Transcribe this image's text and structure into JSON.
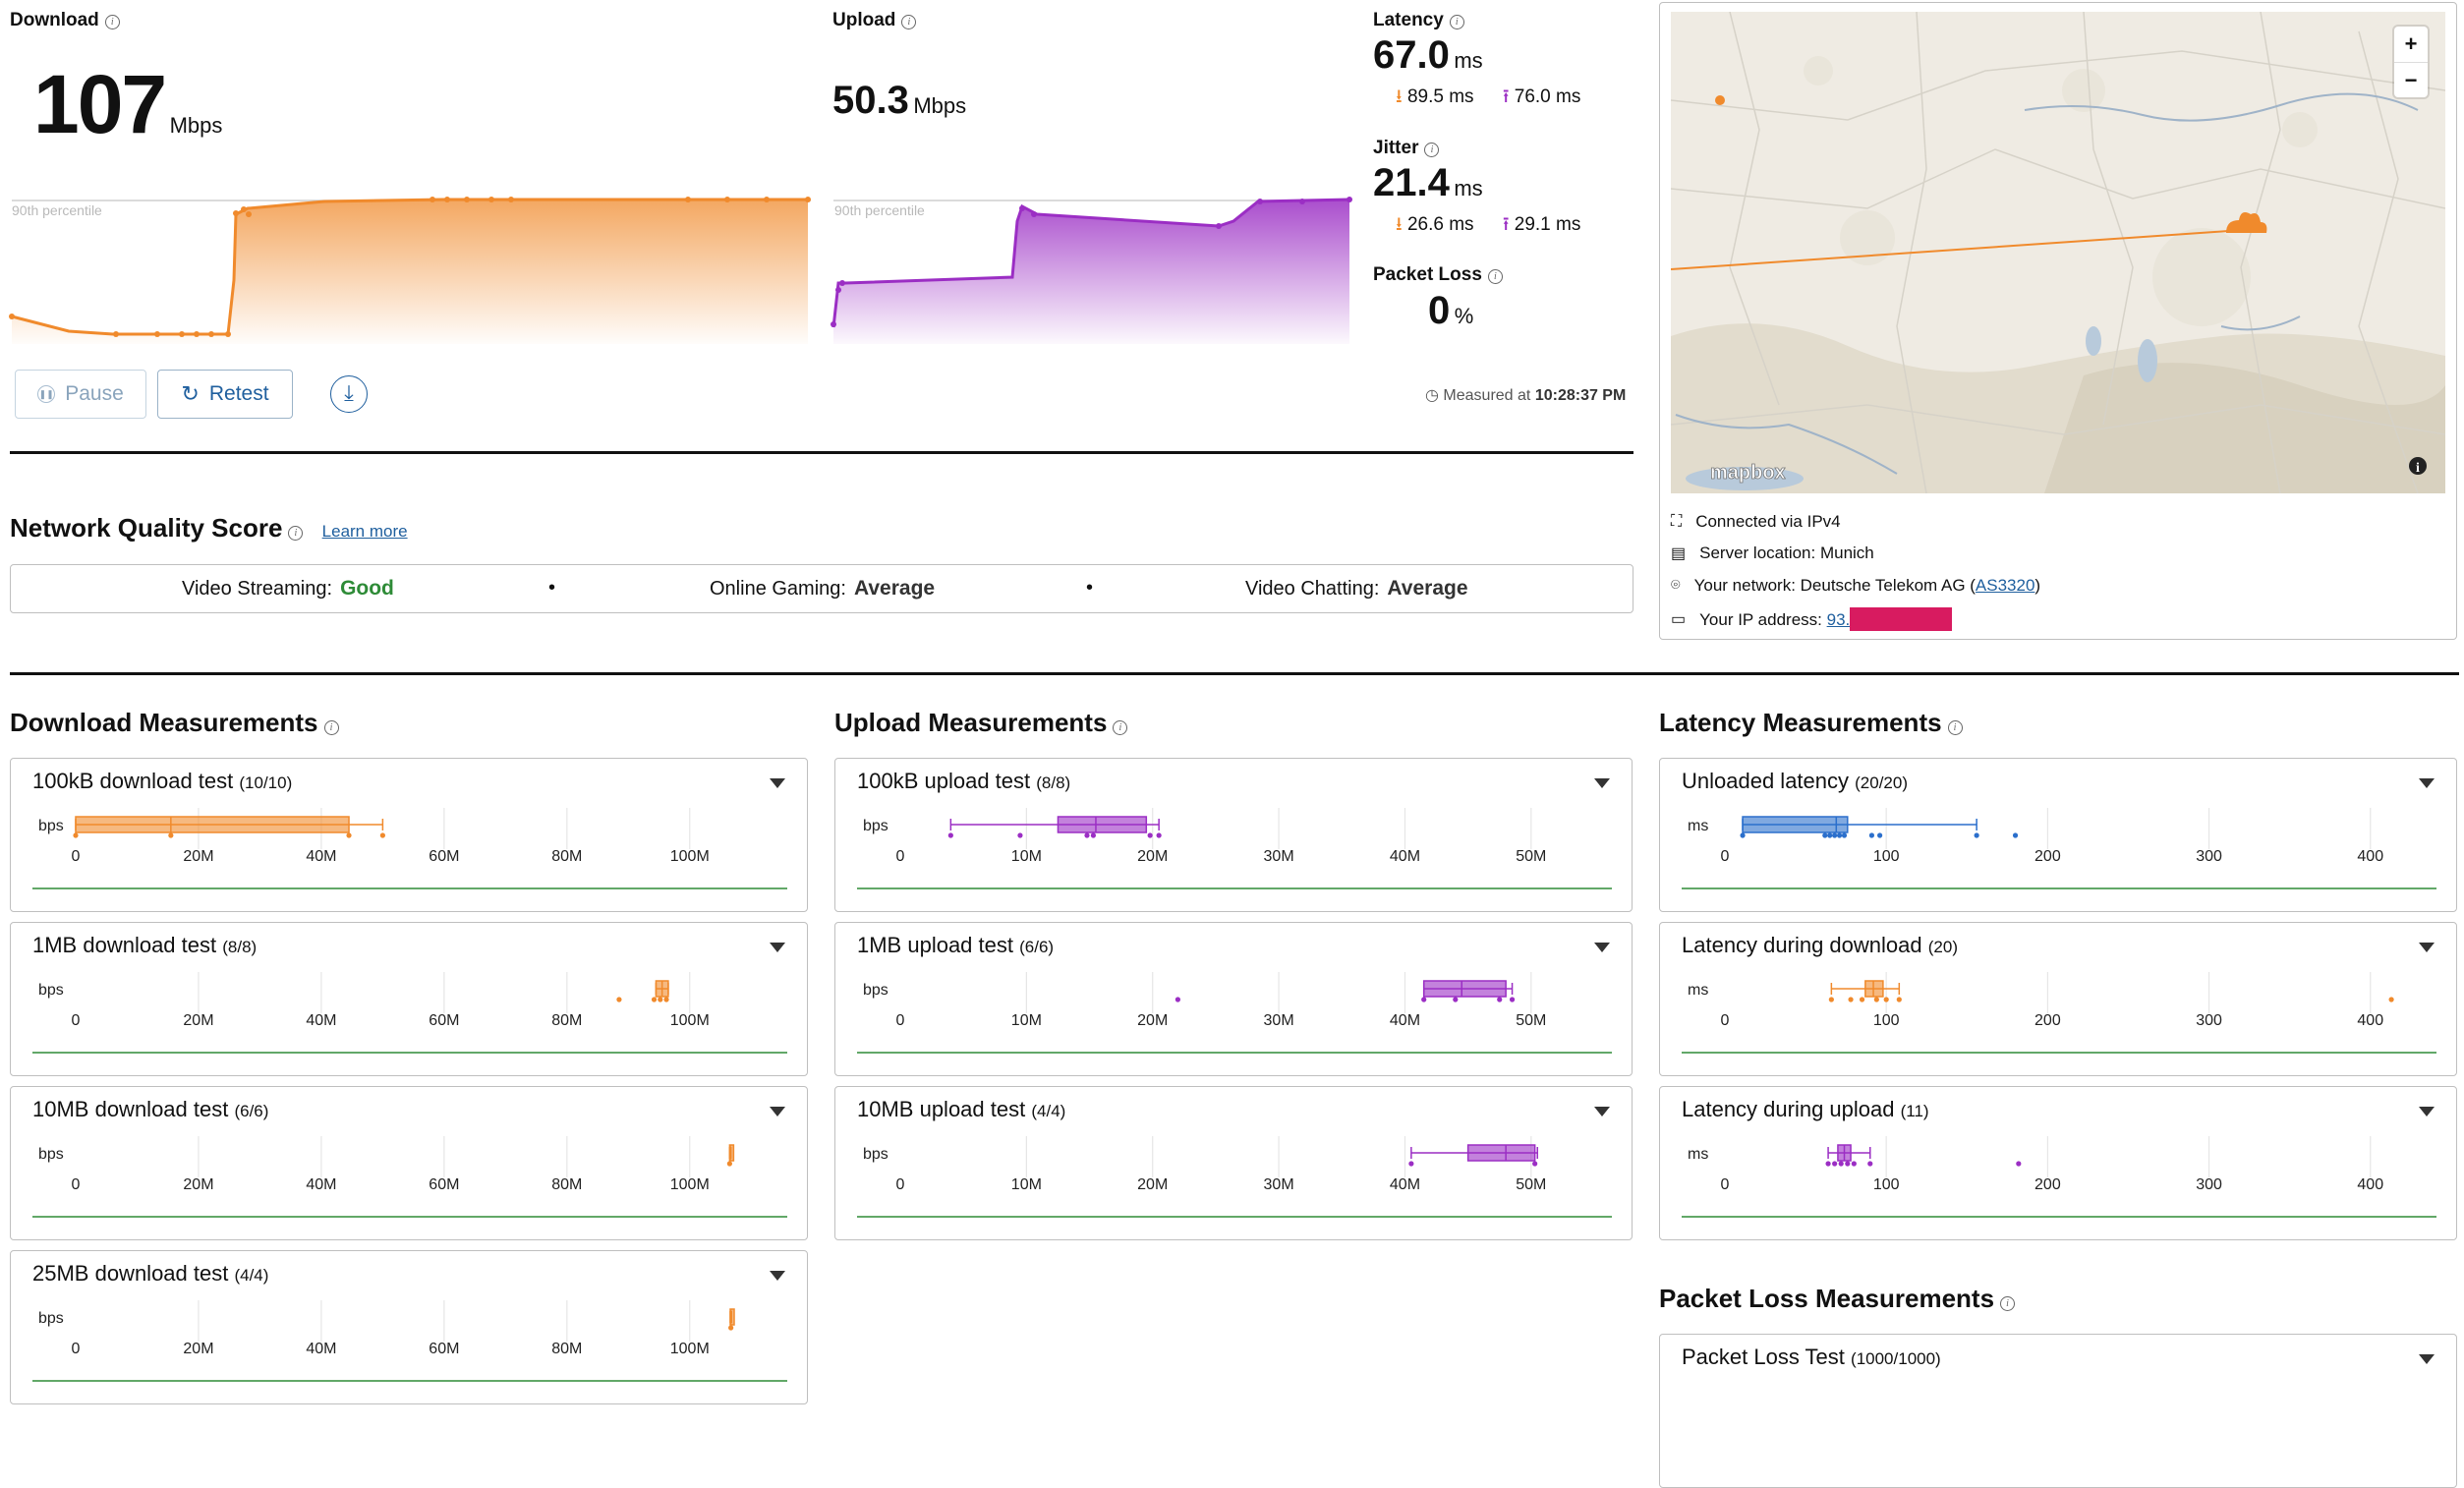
{
  "summary": {
    "download": {
      "label": "Download",
      "value": "107",
      "unit": "Mbps",
      "percentile_label": "90th percentile"
    },
    "upload": {
      "label": "Upload",
      "value": "50.3",
      "unit": "Mbps",
      "percentile_label": "90th percentile"
    },
    "latency": {
      "label": "Latency",
      "value": "67.0",
      "unit": "ms",
      "down": "89.5 ms",
      "up": "76.0 ms"
    },
    "jitter": {
      "label": "Jitter",
      "value": "21.4",
      "unit": "ms",
      "down": "26.6 ms",
      "up": "29.1 ms"
    },
    "packet_loss": {
      "label": "Packet Loss",
      "value": "0",
      "unit": "%"
    },
    "measured_prefix": "Measured at ",
    "measured_time": "10:28:37 PM"
  },
  "buttons": {
    "pause": "Pause",
    "retest": "Retest"
  },
  "network_quality": {
    "title": "Network Quality Score",
    "learn_more": "Learn more",
    "items": [
      {
        "label": "Video Streaming:",
        "value": "Good"
      },
      {
        "label": "Online Gaming:",
        "value": "Average"
      },
      {
        "label": "Video Chatting:",
        "value": "Average"
      }
    ],
    "separator": "•"
  },
  "map": {
    "attribution": "mapbox",
    "zoom_in": "+",
    "zoom_out": "−",
    "info": "i"
  },
  "connection": {
    "via": "Connected via IPv4",
    "server": "Server location: Munich",
    "network_prefix": "Your network: Deutsche Telekom AG (",
    "asn": "AS3320",
    "network_suffix": ")",
    "ip_prefix": "Your IP address: ",
    "ip_visible": "93."
  },
  "sections": {
    "download": "Download Measurements",
    "upload": "Upload Measurements",
    "latency": "Latency Measurements",
    "packet_loss": "Packet Loss Measurements"
  },
  "colors": {
    "download": "#f08a2c",
    "upload": "#9b2ec4",
    "latency": "#2b6fcc",
    "good": "#2e8b37",
    "redact": "#d81b60"
  },
  "cards": {
    "download": [
      {
        "title": "100kB download test",
        "count": "(10/10)",
        "unit": "bps",
        "ticks": [
          "0",
          "20M",
          "40M",
          "60M",
          "80M",
          "100M"
        ],
        "tick_values": [
          0,
          20,
          40,
          60,
          80,
          100
        ],
        "xmax": 113,
        "whisker": [
          0,
          50
        ],
        "box": [
          0,
          44.5
        ],
        "median": 15.5,
        "points": [
          0,
          15.5,
          44.5,
          50
        ]
      },
      {
        "title": "1MB download test",
        "count": "(8/8)",
        "unit": "bps",
        "ticks": [
          "0",
          "20M",
          "40M",
          "60M",
          "80M",
          "100M"
        ],
        "tick_values": [
          0,
          20,
          40,
          60,
          80,
          100
        ],
        "xmax": 113,
        "whisker": [
          94.5,
          96.5
        ],
        "box": [
          94.5,
          96.5
        ],
        "median": 95.5,
        "points": [
          88.5,
          94.2,
          95.2,
          96.2
        ]
      },
      {
        "title": "10MB download test",
        "count": "(6/6)",
        "unit": "bps",
        "ticks": [
          "0",
          "20M",
          "40M",
          "60M",
          "80M",
          "100M"
        ],
        "tick_values": [
          0,
          20,
          40,
          60,
          80,
          100
        ],
        "xmax": 113,
        "whisker": [
          106.5,
          106.7
        ],
        "box": [
          106.5,
          106.7
        ],
        "median": 106.6,
        "points": [
          106.5
        ]
      },
      {
        "title": "25MB download test",
        "count": "(4/4)",
        "unit": "bps",
        "ticks": [
          "0",
          "20M",
          "40M",
          "60M",
          "80M",
          "100M"
        ],
        "tick_values": [
          0,
          20,
          40,
          60,
          80,
          100
        ],
        "xmax": 113,
        "whisker": [
          106.6,
          106.8
        ],
        "box": [
          106.6,
          106.8
        ],
        "median": 106.7,
        "points": [
          106.7
        ]
      }
    ],
    "upload": [
      {
        "title": "100kB upload test",
        "count": "(8/8)",
        "unit": "bps",
        "ticks": [
          "0",
          "10M",
          "20M",
          "30M",
          "40M",
          "50M"
        ],
        "tick_values": [
          0,
          10,
          20,
          30,
          40,
          50
        ],
        "xmax": 55,
        "whisker": [
          4,
          20.5
        ],
        "box": [
          12.5,
          19.5
        ],
        "median": 15.5,
        "points": [
          4,
          9.5,
          14.8,
          15.3,
          19.8,
          20.5
        ]
      },
      {
        "title": "1MB upload test",
        "count": "(6/6)",
        "unit": "bps",
        "ticks": [
          "0",
          "10M",
          "20M",
          "30M",
          "40M",
          "50M"
        ],
        "tick_values": [
          0,
          10,
          20,
          30,
          40,
          50
        ],
        "xmax": 55,
        "whisker": [
          41.5,
          48.5
        ],
        "box": [
          41.5,
          48
        ],
        "median": 44.5,
        "points": [
          22,
          41.5,
          44,
          47.5,
          48.5
        ]
      },
      {
        "title": "10MB upload test",
        "count": "(4/4)",
        "unit": "bps",
        "ticks": [
          "0",
          "10M",
          "20M",
          "30M",
          "40M",
          "50M"
        ],
        "tick_values": [
          0,
          10,
          20,
          30,
          40,
          50
        ],
        "xmax": 55,
        "whisker": [
          40.5,
          50.5
        ],
        "box": [
          45,
          50.3
        ],
        "median": 48,
        "points": [
          40.5,
          50.3
        ]
      }
    ],
    "latency": [
      {
        "title": "Unloaded latency",
        "count": "(20/20)",
        "unit": "ms",
        "ticks": [
          "0",
          "100",
          "200",
          "300",
          "400"
        ],
        "tick_values": [
          0,
          100,
          200,
          300,
          400
        ],
        "xmax": 430,
        "whisker": [
          11,
          156
        ],
        "box": [
          11,
          76
        ],
        "median": 69,
        "points": [
          11,
          62,
          65,
          68,
          71,
          74,
          91,
          96,
          156,
          180
        ]
      },
      {
        "title": "Latency during download",
        "count": "(20)",
        "unit": "ms",
        "ticks": [
          "0",
          "100",
          "200",
          "300",
          "400"
        ],
        "tick_values": [
          0,
          100,
          200,
          300,
          400
        ],
        "xmax": 430,
        "whisker": [
          66,
          108
        ],
        "box": [
          87,
          98
        ],
        "median": 92,
        "points": [
          66,
          78,
          85,
          94,
          100,
          108,
          413
        ]
      },
      {
        "title": "Latency during upload",
        "count": "(11)",
        "unit": "ms",
        "ticks": [
          "0",
          "100",
          "200",
          "300",
          "400"
        ],
        "tick_values": [
          0,
          100,
          200,
          300,
          400
        ],
        "xmax": 430,
        "whisker": [
          64,
          90
        ],
        "box": [
          70,
          78
        ],
        "median": 74,
        "points": [
          64,
          68,
          72,
          76,
          80,
          90,
          182
        ]
      }
    ],
    "packet_loss": [
      {
        "title": "Packet Loss Test",
        "count": "(1000/1000)"
      }
    ]
  }
}
